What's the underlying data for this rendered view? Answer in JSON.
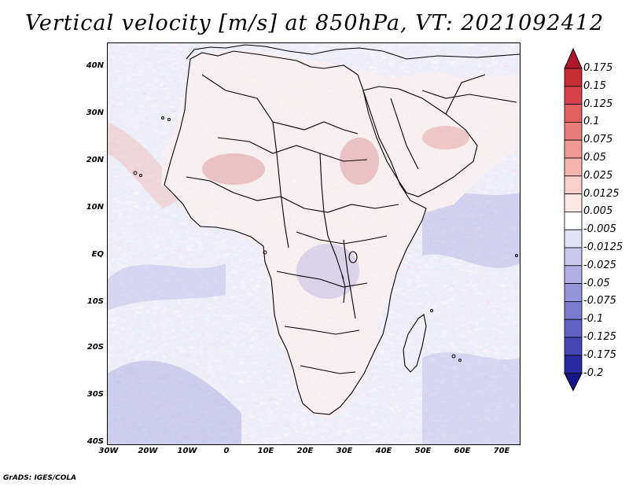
{
  "title": "Vertical velocity [m/s] at 850hPa, VT: 2021092412",
  "footer": "GrADS: IGES/COLA",
  "lat_labels": [
    "40N",
    "30N",
    "20N",
    "10N",
    "EQ",
    "10S",
    "20S",
    "30S",
    "40S"
  ],
  "lon_labels": [
    "30W",
    "20W",
    "10W",
    "0",
    "10E",
    "20E",
    "30E",
    "40E",
    "50E",
    "60E",
    "70E"
  ],
  "colorbar": {
    "labels": [
      "0.175",
      "0.15",
      "0.125",
      "0.1",
      "0.075",
      "0.05",
      "0.025",
      "0.0125",
      "0.005",
      "-0.005",
      "-0.0125",
      "-0.025",
      "-0.05",
      "-0.075",
      "-0.1",
      "-0.125",
      "-0.175",
      "-0.2"
    ],
    "colors": [
      "#b2182b",
      "#c62d35",
      "#d6424a",
      "#e0605f",
      "#e87c78",
      "#f09a93",
      "#f5b5ae",
      "#f9d0cb",
      "#fde8e5",
      "#ffffff",
      "#e3e3f6",
      "#c9c9ee",
      "#afafe4",
      "#9595da",
      "#7b7bd0",
      "#6161c4",
      "#4545b4",
      "#2a2aa0",
      "#16168a"
    ]
  },
  "map": {
    "region": "Africa and Middle East",
    "lon_range": [
      -30,
      75
    ],
    "lat_range": [
      -40,
      45
    ],
    "variable": "vertical velocity",
    "level": "850hPa"
  }
}
